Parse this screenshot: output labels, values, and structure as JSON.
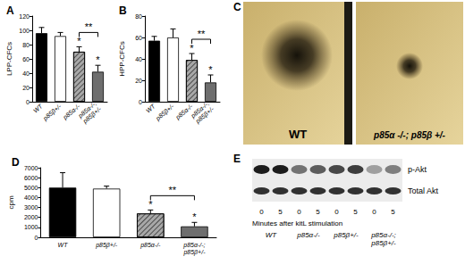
{
  "chart_data": [
    {
      "type": "bar",
      "title": "A",
      "ylabel": "LPP-CFCs",
      "categories": [
        "WT",
        "p85β+/-",
        "p85α-/-",
        "p85α-/-;\np85β+/-"
      ],
      "values": [
        96,
        92,
        70,
        42
      ],
      "errors": [
        8,
        5,
        7,
        9
      ],
      "colors": [
        "#000000",
        "#ffffff",
        "#a8a8a8",
        "#6e6e6e"
      ],
      "stars": [
        null,
        null,
        "*",
        "*"
      ],
      "bracket": {
        "between": [
          "p85α-/-",
          "p85α-/-;\np85β+/-"
        ],
        "label": "**"
      },
      "ylim": [
        0,
        120
      ],
      "yticks": [
        0,
        20,
        40,
        60,
        80,
        100,
        120
      ],
      "grid": false
    },
    {
      "type": "bar",
      "title": "B",
      "ylabel": "HPP-CFCs",
      "categories": [
        "WT",
        "p85β+/-",
        "p85α-/-",
        "p85α-/-;\np85β+/-"
      ],
      "values": [
        57,
        60,
        39,
        18
      ],
      "errors": [
        4,
        8,
        6,
        7
      ],
      "colors": [
        "#000000",
        "#ffffff",
        "#a8a8a8",
        "#6e6e6e"
      ],
      "stars": [
        null,
        null,
        "*",
        "*"
      ],
      "bracket": {
        "between": [
          "p85α-/-",
          "p85α-/-;\np85β+/-"
        ],
        "label": "**"
      },
      "ylim": [
        0,
        80
      ],
      "yticks": [
        0,
        20,
        40,
        60,
        80
      ],
      "grid": false
    },
    {
      "type": "bar",
      "title": "D",
      "ylabel": "cpm",
      "categories": [
        "WT",
        "p85β+/-",
        "p85α-/-",
        "p85α-/-;\np85β+/-"
      ],
      "values": [
        5000,
        4900,
        2400,
        1100
      ],
      "errors": [
        1500,
        250,
        350,
        400
      ],
      "colors": [
        "#000000",
        "#ffffff",
        "#a8a8a8",
        "#6e6e6e"
      ],
      "stars": [
        null,
        null,
        "*",
        "*"
      ],
      "bracket": {
        "between": [
          "p85α-/-",
          "p85α-/-;\np85β+/-"
        ],
        "label": "**"
      },
      "ylim": [
        0,
        7000
      ],
      "yticks": [
        0,
        1000,
        2000,
        3000,
        4000,
        5000,
        6000,
        7000
      ],
      "grid": false
    }
  ],
  "panel_C": {
    "title": "C",
    "photos": [
      "WT",
      "p85α -/-; p85β +/-"
    ]
  },
  "panel_E": {
    "title": "E",
    "rows": [
      "p-Akt",
      "Total Akt"
    ],
    "band_intensity": {
      "p-Akt": [
        0.95,
        0.95,
        0.55,
        0.65,
        0.75,
        0.8,
        0.35,
        0.5
      ],
      "Total Akt": [
        0.85,
        0.85,
        0.85,
        0.85,
        0.85,
        0.85,
        0.85,
        0.85
      ]
    },
    "lanes": [
      "0",
      "5",
      "0",
      "5",
      "0",
      "5",
      "0",
      "5"
    ],
    "caption": "Minutes after kitL stimulation",
    "groups": [
      "WT",
      "p85α-/-",
      "p85β+/-",
      "p85α-/-;\np85β+/-"
    ]
  }
}
